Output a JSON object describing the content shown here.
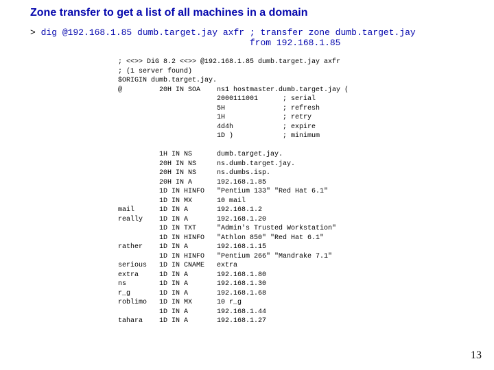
{
  "title": "Zone transfer to get a list of all machines in a domain",
  "cmd": {
    "prompt": "> ",
    "part1": "dig @192.168.1.85 dumb.target.jay axfr ",
    "comment1": "; transfer zone dumb.target.jay",
    "comment2": "                                         from 192.168.1.85"
  },
  "zone": [
    "; <<>> DiG 8.2 <<>> @192.168.1.85 dumb.target.jay axfr",
    "; (1 server found)",
    "$ORIGIN dumb.target.jay.",
    "@         20H IN SOA    ns1 hostmaster.dumb.target.jay (",
    "                        2000111001      ; serial",
    "                        5H              ; refresh",
    "                        1H              ; retry",
    "                        4d4h            ; expire",
    "                        1D )            ; minimum",
    "",
    "          1H IN NS      dumb.target.jay.",
    "          20H IN NS     ns.dumb.target.jay.",
    "          20H IN NS     ns.dumbs.isp.",
    "          20H IN A      192.168.1.85",
    "          1D IN HINFO   \"Pentium 133\" \"Red Hat 6.1\"",
    "          1D IN MX      10 mail",
    "mail      1D IN A       192.168.1.2",
    "really    1D IN A       192.168.1.20",
    "          1D IN TXT     \"Admin's Trusted Workstation\"",
    "          1D IN HINFO   \"Athlon 850\" \"Red Hat 6.1\"",
    "rather    1D IN A       192.168.1.15",
    "          1D IN HINFO   \"Pentium 266\" \"Mandrake 7.1\"",
    "serious   1D IN CNAME   extra",
    "extra     1D IN A       192.168.1.80",
    "ns        1D IN A       192.168.1.30",
    "r_g       1D IN A       192.168.1.68",
    "roblimo   1D IN MX      10 r_g",
    "          1D IN A       192.168.1.44",
    "tahara    1D IN A       192.168.1.27"
  ],
  "page_number": "13",
  "colors": {
    "title_blue": "#0507ad",
    "text_black": "#000000",
    "background": "#ffffff"
  }
}
